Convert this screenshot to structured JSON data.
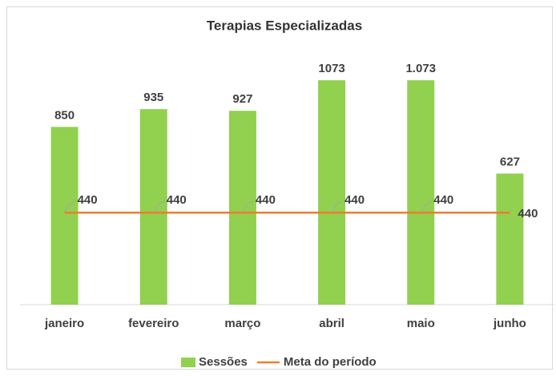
{
  "chart_data": {
    "type": "bar+line",
    "title": "Terapias Especializadas",
    "categories": [
      "janeiro",
      "fevereiro",
      "março",
      "abril",
      "maio",
      "junho"
    ],
    "series": [
      {
        "name": "Sessões",
        "type": "bar",
        "color": "#92d050",
        "values": [
          850,
          935,
          927,
          1073,
          1073,
          627
        ],
        "value_labels": [
          "850",
          "935",
          "927",
          "1073",
          "1.073",
          "627"
        ]
      },
      {
        "name": "Meta do período",
        "type": "line",
        "color": "#ed7d31",
        "values": [
          440,
          440,
          440,
          440,
          440,
          440
        ]
      }
    ],
    "ylim": [
      0,
      1200
    ],
    "legend": "bottom"
  }
}
